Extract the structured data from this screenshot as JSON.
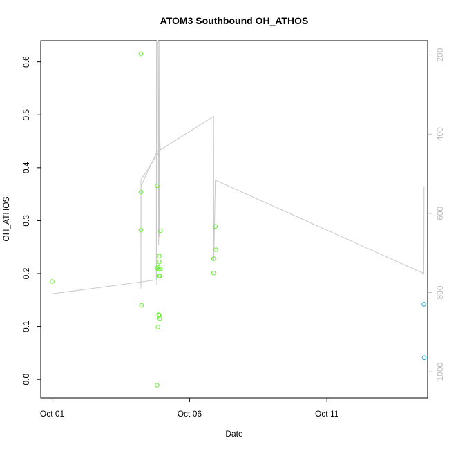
{
  "chart_data": {
    "type": "scatter",
    "title": "ATOM3 Southbound OH_ATHOS",
    "xlabel": "Date",
    "ylabel": "OH_ATHOS",
    "x_ticks": [
      {
        "date": "2021-10-01",
        "label": "Oct 01"
      },
      {
        "date": "2021-10-06",
        "label": "Oct 06"
      },
      {
        "date": "2021-10-11",
        "label": "Oct 11"
      }
    ],
    "xlim": [
      "2021-09-30T14:00",
      "2021-10-14T16:00"
    ],
    "ylim": [
      -0.035,
      0.64
    ],
    "y_ticks": [
      0.0,
      0.1,
      0.2,
      0.3,
      0.4,
      0.5,
      0.6
    ],
    "y_tick_labels": [
      "0.0",
      "0.1",
      "0.2",
      "0.3",
      "0.4",
      "0.5",
      "0.6"
    ],
    "y2_reversed": true,
    "y2lim": [
      164,
      1066
    ],
    "y2_ticks": [
      200,
      400,
      600,
      800,
      1000
    ],
    "y2_tick_labels": [
      "200",
      "400",
      "600",
      "800",
      "1000"
    ],
    "grid": false,
    "colors": {
      "green_points": "#66ee33",
      "blue_points": "#22aadd",
      "pressure_line": "#c8c8c8",
      "axis": "#000000",
      "right_axis": "#bbbbbb"
    },
    "series": [
      {
        "color": "green",
        "points": [
          {
            "x": "2021-10-01T00:00",
            "y": 0.185
          },
          {
            "x": "2021-10-04T05:30",
            "y": 0.615
          },
          {
            "x": "2021-10-04T05:30",
            "y": 0.354
          },
          {
            "x": "2021-10-04T05:30",
            "y": 0.282
          },
          {
            "x": "2021-10-04T06:00",
            "y": 0.14
          },
          {
            "x": "2021-10-04T19:40",
            "y": 0.366
          },
          {
            "x": "2021-10-04T19:40",
            "y": 0.21
          },
          {
            "x": "2021-10-04T19:40",
            "y": -0.011
          },
          {
            "x": "2021-10-04T20:30",
            "y": 0.212
          },
          {
            "x": "2021-10-04T20:30",
            "y": 0.099
          },
          {
            "x": "2021-10-04T21:00",
            "y": 0.122
          },
          {
            "x": "2021-10-04T21:30",
            "y": 0.233
          },
          {
            "x": "2021-10-04T21:30",
            "y": 0.222
          },
          {
            "x": "2021-10-04T21:30",
            "y": 0.208
          },
          {
            "x": "2021-10-04T21:30",
            "y": 0.196
          },
          {
            "x": "2021-10-04T21:30",
            "y": 0.121
          },
          {
            "x": "2021-10-04T22:00",
            "y": 0.115
          },
          {
            "x": "2021-10-04T22:00",
            "y": 0.195
          },
          {
            "x": "2021-10-04T22:30",
            "y": 0.281
          },
          {
            "x": "2021-10-04T22:30",
            "y": 0.209
          },
          {
            "x": "2021-10-06T21:00",
            "y": 0.228
          },
          {
            "x": "2021-10-06T21:00",
            "y": 0.201
          },
          {
            "x": "2021-10-06T22:30",
            "y": 0.289
          },
          {
            "x": "2021-10-06T23:00",
            "y": 0.245
          }
        ]
      },
      {
        "color": "blue",
        "points": [
          {
            "x": "2021-10-14T12:40",
            "y": 0.142
          },
          {
            "x": "2021-10-14T13:00",
            "y": 0.041
          }
        ]
      }
    ],
    "pressure_line": [
      {
        "x": "2021-10-01T00:00",
        "p": 803
      },
      {
        "x": "2021-10-04T19:00",
        "p": 768
      },
      {
        "x": "2021-10-04T19:10",
        "p": 160
      },
      {
        "x": "2021-10-04T19:20",
        "p": 780
      },
      {
        "x": "2021-10-04T19:30",
        "p": 160
      },
      {
        "x": "2021-10-04T20:30",
        "p": 160
      },
      {
        "x": "2021-10-04T21:00",
        "p": 680
      },
      {
        "x": "2021-10-04T21:20",
        "p": 160
      },
      {
        "x": "2021-10-04T21:40",
        "p": 660
      },
      {
        "x": "2021-10-04T22:10",
        "p": 420
      },
      {
        "x": "2021-10-04T22:30",
        "p": 440
      },
      {
        "x": "2021-10-04T05:30",
        "p": 515
      },
      {
        "x": "2021-10-04T05:30",
        "p": 790
      },
      {
        "x": "2021-10-04T05:40",
        "p": 530
      },
      {
        "x": "2021-10-04T19:30",
        "p": 445
      },
      {
        "x": "2021-10-06T21:00",
        "p": 355
      },
      {
        "x": "2021-10-06T21:10",
        "p": 720
      },
      {
        "x": "2021-10-06T22:30",
        "p": 516
      },
      {
        "x": "2021-10-14T12:40",
        "p": 752
      },
      {
        "x": "2021-10-14T12:50",
        "p": 532
      }
    ]
  }
}
